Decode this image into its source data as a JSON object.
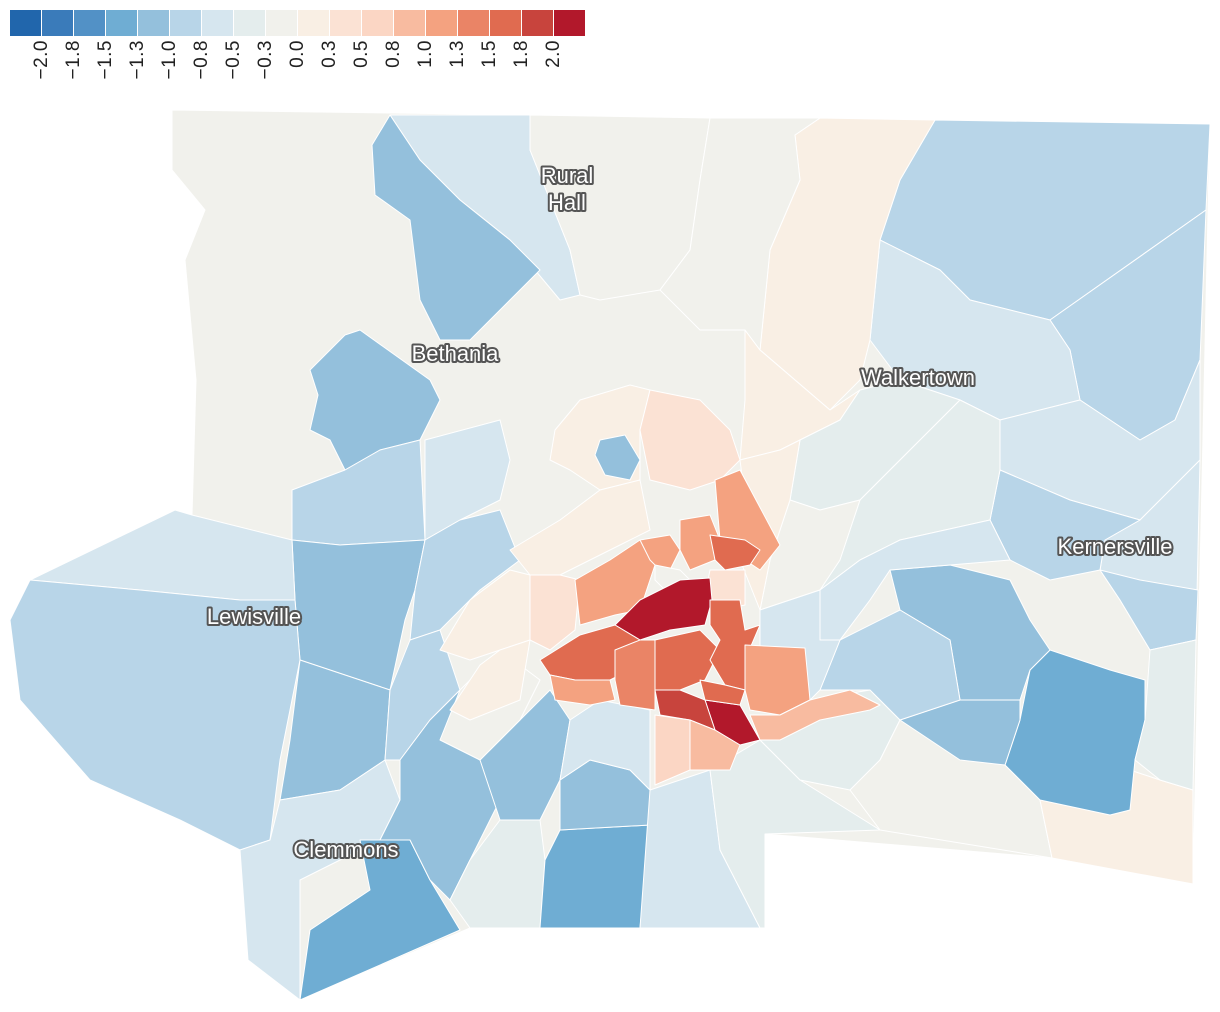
{
  "legend": {
    "ticks": [
      "−2.0",
      "−1.8",
      "−1.5",
      "−1.3",
      "−1.0",
      "−0.8",
      "−0.5",
      "−0.3",
      "0.0",
      "0.3",
      "0.5",
      "0.8",
      "1.0",
      "1.3",
      "1.5",
      "1.8",
      "2.0"
    ],
    "colors": [
      "#2166ac",
      "#3a7bba",
      "#5291c6",
      "#6fadd3",
      "#94c0dc",
      "#b8d5e8",
      "#d6e6ef",
      "#e4eded",
      "#f1f1ec",
      "#f9efe4",
      "#fbe2d4",
      "#fbd6c4",
      "#f8bba0",
      "#f4a280",
      "#ea8466",
      "#e06b50",
      "#c8443d",
      "#b2182b"
    ]
  },
  "places": {
    "rural_hall_line1": "Rural",
    "rural_hall_line2": "Hall",
    "bethania": "Bethania",
    "walkertown": "Walkertown",
    "kernersville": "Kernersville",
    "lewisville": "Lewisville",
    "clemmons": "Clemmons"
  }
}
